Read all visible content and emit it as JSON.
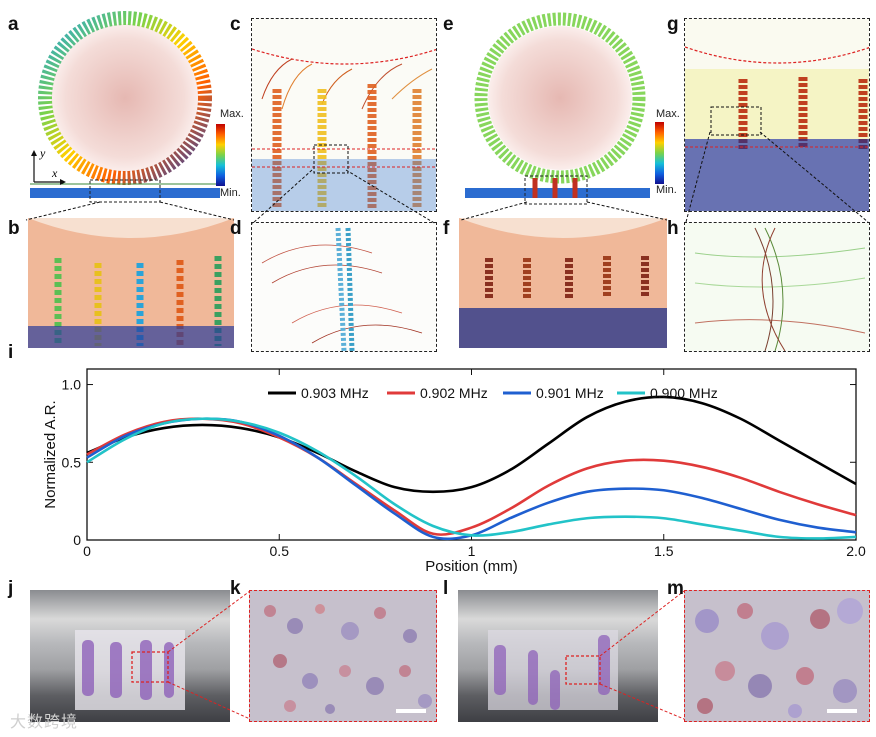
{
  "panels": {
    "a": "a",
    "b": "b",
    "c": "c",
    "d": "d",
    "e": "e",
    "f": "f",
    "g": "g",
    "h": "h",
    "i": "i",
    "j": "j",
    "k": "k",
    "l": "l",
    "m": "m"
  },
  "colorbar": {
    "max_label": "Max.",
    "min_label": "Min."
  },
  "axes_labels": {
    "y": "y",
    "x": "x"
  },
  "colors": {
    "black": "#000000",
    "red": "#e03a3a",
    "blue": "#1f5fd0",
    "cyan": "#22c3c8"
  },
  "watermark": "大数跨境",
  "chart_data": {
    "type": "line",
    "title": "",
    "xlabel": "Position (mm)",
    "ylabel": "Normalized A.R.",
    "xlim": [
      0,
      2.0
    ],
    "ylim": [
      0,
      1.1
    ],
    "xticks": [
      0,
      0.5,
      1,
      1.5,
      2.0
    ],
    "xtick_labels": [
      "0",
      "0.5",
      "1",
      "1.5",
      "2.0"
    ],
    "yticks": [
      0,
      0.5,
      1.0
    ],
    "ytick_labels": [
      "0",
      "0.5",
      "1.0"
    ],
    "legend_position": "top",
    "x": [
      0,
      0.1,
      0.2,
      0.3,
      0.4,
      0.5,
      0.6,
      0.7,
      0.8,
      0.9,
      1.0,
      1.1,
      1.2,
      1.3,
      1.4,
      1.5,
      1.6,
      1.7,
      1.8,
      1.9,
      2.0
    ],
    "series": [
      {
        "name": "0.903 MHz",
        "color": "#000000",
        "values": [
          0.56,
          0.66,
          0.72,
          0.74,
          0.72,
          0.66,
          0.56,
          0.44,
          0.34,
          0.31,
          0.34,
          0.45,
          0.62,
          0.79,
          0.89,
          0.92,
          0.88,
          0.78,
          0.64,
          0.5,
          0.36
        ]
      },
      {
        "name": "0.902 MHz",
        "color": "#e03a3a",
        "values": [
          0.55,
          0.68,
          0.76,
          0.78,
          0.75,
          0.66,
          0.53,
          0.36,
          0.19,
          0.04,
          0.08,
          0.2,
          0.35,
          0.46,
          0.51,
          0.51,
          0.47,
          0.4,
          0.31,
          0.23,
          0.16
        ]
      },
      {
        "name": "0.901 MHz",
        "color": "#1f5fd0",
        "values": [
          0.53,
          0.67,
          0.75,
          0.78,
          0.76,
          0.67,
          0.53,
          0.35,
          0.17,
          0.02,
          0.03,
          0.14,
          0.24,
          0.31,
          0.33,
          0.32,
          0.27,
          0.2,
          0.13,
          0.08,
          0.05
        ]
      },
      {
        "name": "0.900 MHz",
        "color": "#22c3c8",
        "values": [
          0.5,
          0.65,
          0.75,
          0.78,
          0.76,
          0.69,
          0.57,
          0.41,
          0.23,
          0.09,
          0.03,
          0.05,
          0.1,
          0.14,
          0.15,
          0.14,
          0.1,
          0.06,
          0.02,
          0.01,
          0.02
        ]
      }
    ]
  }
}
